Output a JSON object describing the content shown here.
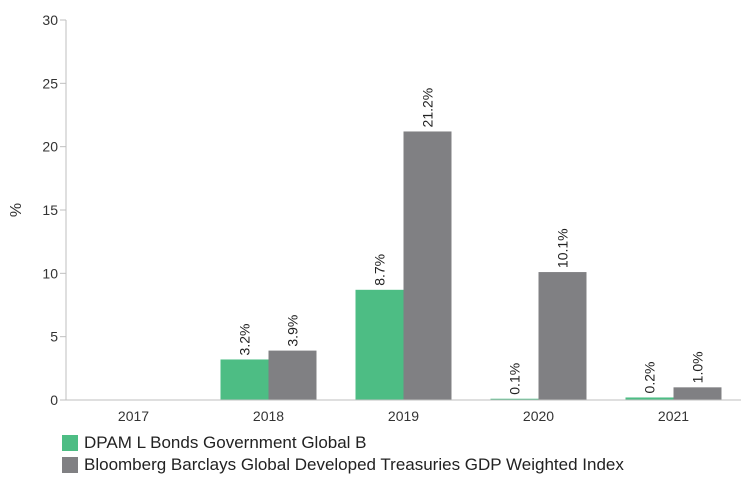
{
  "chart_data": {
    "type": "bar",
    "categories": [
      "2017",
      "2018",
      "2019",
      "2020",
      "2021"
    ],
    "series": [
      {
        "name": "DPAM L Bonds Government Global B",
        "values": [
          null,
          3.2,
          8.7,
          0.1,
          0.2
        ],
        "labels": [
          "",
          "3.2%",
          "8.7%",
          "0.1%",
          "0.2%"
        ],
        "color": "#4dbd84"
      },
      {
        "name": "Bloomberg Barclays Global Developed Treasuries GDP Weighted Index",
        "values": [
          null,
          3.9,
          21.2,
          10.1,
          1.0
        ],
        "labels": [
          "",
          "3.9%",
          "21.2%",
          "10.1%",
          "1.0%"
        ],
        "color": "#808083"
      }
    ],
    "ylabel": "%",
    "xlabel": "",
    "ylim": [
      0,
      30
    ],
    "yticks": [
      0,
      5,
      10,
      15,
      20,
      25,
      30
    ],
    "grid": false,
    "legend_position": "bottom-left"
  }
}
